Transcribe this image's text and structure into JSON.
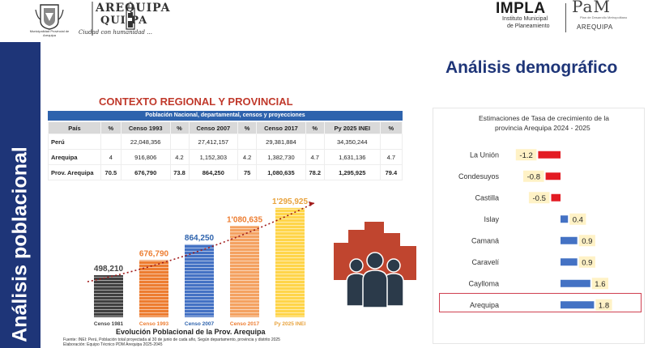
{
  "header": {
    "municipality_name": "Municipalidad Provincial de Arequipa",
    "arequipa_word_line1": "AREQUIPA",
    "arequipa_word_line2": "QUI PA",
    "arequipa_motto": "Ciudad con humanidad ...",
    "impla_word": "IMPLA",
    "impla_sub_line1": "Instituto Municipal",
    "impla_sub_line2": "de Planeamiento",
    "pam_word": "PaM",
    "pam_sub_line1": "Plan de Desarrollo Metropolitano",
    "pam_sub_line2": "AREQUIPA"
  },
  "sidebar": {
    "title": "Análisis poblacional"
  },
  "main_title": "Análisis demográfico",
  "section_heading": "CONTEXTO REGIONAL Y PROVINCIAL",
  "table": {
    "caption": "Población Nacional, departamental, censos y proyecciones",
    "headers": [
      "País",
      "%",
      "Censo 1993",
      "%",
      "Censo 2007",
      "%",
      "Censo 2017",
      "%",
      "Py 2025 INEI",
      "%"
    ],
    "rows": [
      [
        "Perú",
        "",
        "22,048,356",
        "",
        "27,412,157",
        "",
        "29,381,884",
        "",
        "34,350,244",
        ""
      ],
      [
        "Arequipa",
        "4",
        "916,806",
        "4.2",
        "1,152,303",
        "4.2",
        "1,382,730",
        "4.7",
        "1,631,136",
        "4.7"
      ],
      [
        "Prov. Arequipa",
        "70.5",
        "676,790",
        "73.8",
        "864,250",
        "75",
        "1,080,635",
        "78.2",
        "1,295,925",
        "79.4"
      ]
    ]
  },
  "growth_chart": {
    "title": "Evolución Poblacional de la Prov. Arequipa",
    "source_line1": "Fuente: INEI: Perú, Población total proyectada al 30 de junio de cada año, Según departamento, provincia y distrito 2025",
    "source_line2": "Elaboración: Equipo Técnico PDM Arequipa 2025-2045"
  },
  "rate_chart": {
    "title_line1": "Estimaciones de Tasa de crecimiento de la",
    "title_line2": "provincia Arequipa   2024  - 2025"
  },
  "colors": {
    "navy": "#1e3578",
    "table_blue": "#2e63ad",
    "heading_red": "#c0392b",
    "bar_negative": "#e31b23",
    "bar_positive": "#4472c4",
    "bar_1981": "#404040",
    "bar_1993": "#ed7d31",
    "bar_2007": "#4472c4",
    "bar_2017": "#f4a261",
    "bar_2025": "#ffd54a",
    "illustration": "#c0452f"
  },
  "chart_data": [
    {
      "type": "bar",
      "title": "Evolución Poblacional de la Prov. Arequipa",
      "categories": [
        "Censo 1981",
        "Censo 1993",
        "Censo 2007",
        "Censo 2017",
        "Py 2025 INEI"
      ],
      "values": [
        498210,
        676790,
        864250,
        1080635,
        1295925
      ],
      "value_labels": [
        "498,210",
        "676,790",
        "864,250",
        "1'080,635",
        "1'295,925"
      ],
      "ylim": [
        0,
        1400000
      ],
      "trend_line": true,
      "grid": false
    },
    {
      "type": "bar",
      "orientation": "horizontal",
      "title": "Estimaciones de Tasa de crecimiento de la provincia Arequipa   2024  - 2025",
      "categories": [
        "La Unión",
        "Condesuyos",
        "Castilla",
        "Islay",
        "Camaná",
        "Caravelí",
        "Caylloma",
        "Arequipa"
      ],
      "values": [
        -1.2,
        -0.8,
        -0.5,
        0.4,
        0.9,
        0.9,
        1.6,
        1.8
      ],
      "value_labels": [
        "-1.2",
        "-0.8",
        "-0.5",
        "0.4",
        "0.9",
        "0.9",
        "1.6",
        "1.8"
      ],
      "xlim": [
        -2,
        2
      ],
      "grid": false,
      "highlighted": "Arequipa"
    }
  ]
}
